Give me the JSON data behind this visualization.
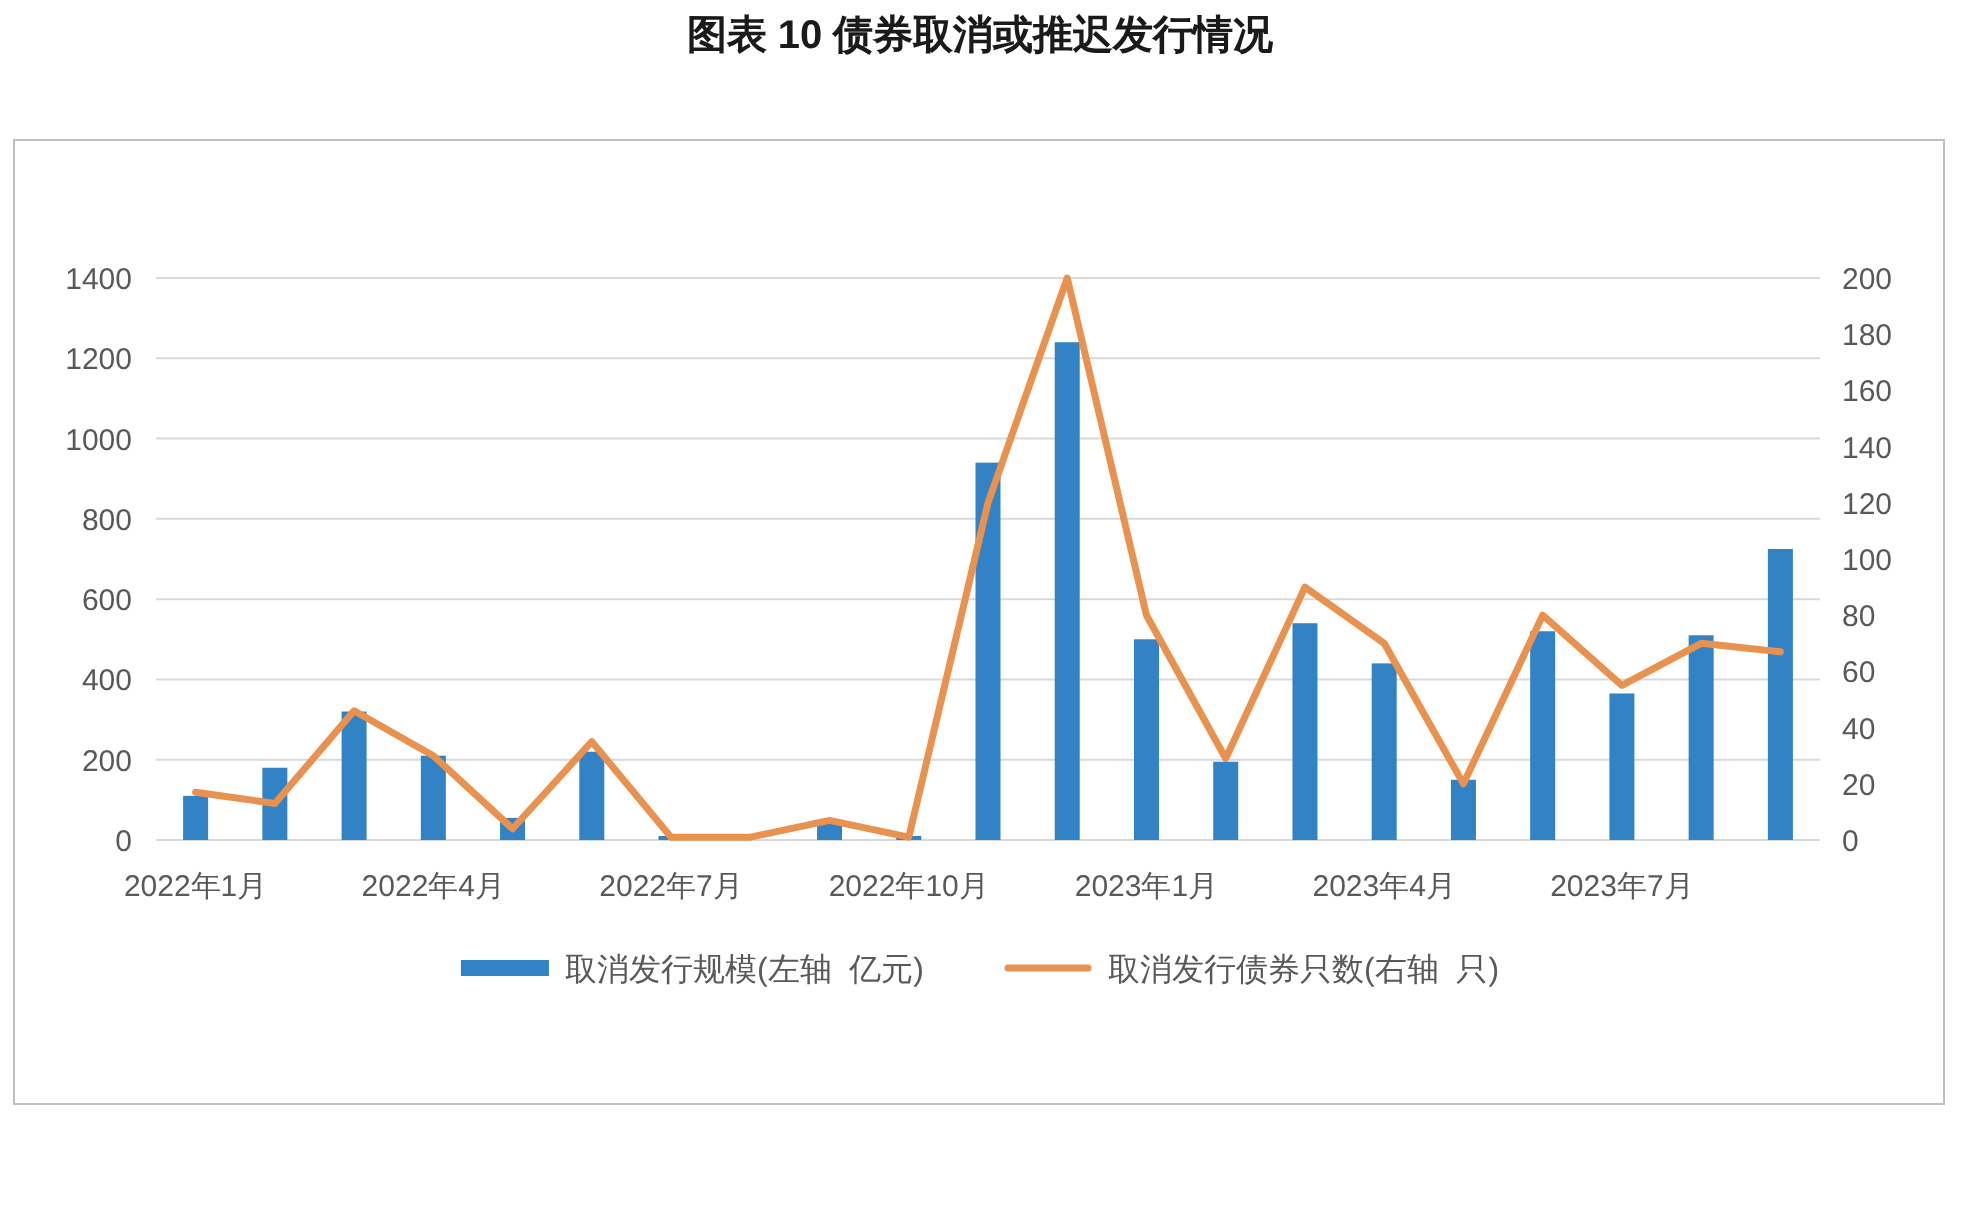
{
  "chart_data": {
    "type": "bar",
    "title": "图表 10 债券取消或推迟发行情况",
    "categories": [
      "2022年1月",
      null,
      null,
      "2022年4月",
      null,
      null,
      "2022年7月",
      null,
      null,
      "2022年10月",
      null,
      null,
      "2023年1月",
      null,
      null,
      "2023年4月",
      null,
      null,
      "2023年7月",
      null,
      null
    ],
    "series": [
      {
        "name": "取消发行规模(左轴  亿元)",
        "color": "#3283c5",
        "values": [
          110,
          180,
          320,
          210,
          55,
          220,
          10,
          0,
          50,
          10,
          940,
          1240,
          500,
          195,
          540,
          440,
          150,
          520,
          365,
          510,
          725
        ]
      },
      {
        "name": "取消发行债券只数(右轴  只)",
        "type": "line",
        "axis": "y2",
        "color": "#e9914f",
        "values": [
          17,
          13,
          46,
          30,
          4,
          35,
          1,
          1,
          7,
          1,
          120,
          200,
          80,
          29,
          90,
          70,
          20,
          80,
          55,
          70,
          67
        ]
      }
    ],
    "ylim": [
      0,
      1400
    ],
    "yticks": [
      0,
      200,
      400,
      600,
      800,
      1000,
      1200,
      1400
    ],
    "y2lim": [
      0,
      200
    ],
    "y2ticks": [
      0,
      20,
      40,
      60,
      80,
      100,
      120,
      140,
      160,
      180,
      200
    ],
    "grid": "y",
    "legend": "bottom"
  }
}
